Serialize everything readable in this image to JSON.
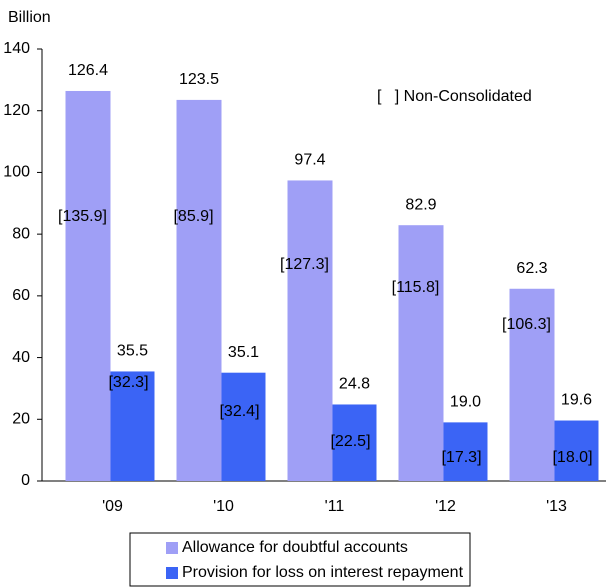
{
  "chart_data": {
    "type": "bar",
    "y_label": "Billion",
    "annotation": "[   ] Non-Consolidated",
    "categories": [
      "'09",
      "'10",
      "'11",
      "'12",
      "'13"
    ],
    "series": [
      {
        "name": "Allowance for doubtful accounts",
        "color": "#9f9ff6",
        "values": [
          126.4,
          123.5,
          97.4,
          82.9,
          62.3
        ],
        "bracket_labels": [
          "[135.9]",
          "[85.9]",
          "[127.3]",
          "[115.8]",
          "[106.3]"
        ]
      },
      {
        "name": "Provision for loss on interest repayment",
        "color": "#3b64f5",
        "values": [
          35.5,
          35.1,
          24.8,
          19,
          19.6
        ],
        "value_labels": [
          "35.5",
          "35.1",
          "24.8",
          "19.0",
          "19.6"
        ],
        "bracket_labels": [
          "[32.3]",
          "[32.4]",
          "[22.5]",
          "[17.3]",
          "[18.0]"
        ]
      }
    ],
    "ylim": [
      0,
      140
    ],
    "yticks": [
      0,
      20,
      40,
      60,
      80,
      100,
      120,
      140
    ],
    "grid": false,
    "legend": "bottom"
  }
}
